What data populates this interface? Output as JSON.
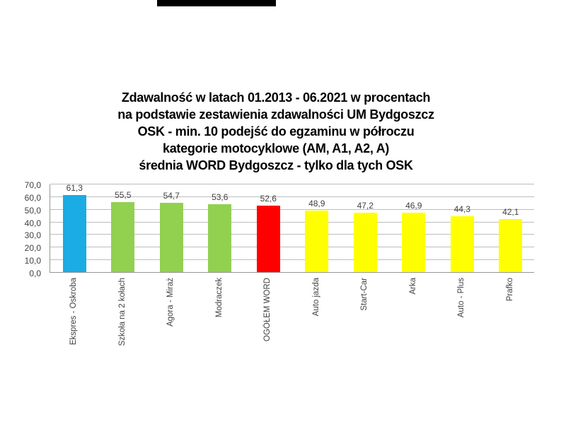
{
  "page": {
    "background": "#ffffff"
  },
  "redaction_bar": {
    "color": "#000000"
  },
  "title": {
    "lines": [
      "Zdawalność w latach 01.2013 - 06.2021 w procentach",
      "na podstawie zestawienia zdawalności UM Bydgoszcz",
      "OSK - min. 10 podejść do egzaminu w półroczu",
      "kategorie motocyklowe (AM, A1, A2, A)",
      "średnia WORD Bydgoszcz - tylko dla tych OSK"
    ]
  },
  "chart_data": {
    "type": "bar",
    "title": "Zdawalność w latach 01.2013 - 06.2021 w procentach na podstawie zestawienia zdawalności UM Bydgoszcz; OSK - min. 10 podejść do egzaminu w półroczu; kategorie motocyklowe (AM, A1, A2, A); średnia WORD Bydgoszcz - tylko dla tych OSK",
    "categories": [
      "Ekspres - Oskroba",
      "Szkoła na 2 kołach",
      "Agora - Miraż",
      "Modraczek",
      "OGÓŁEM WORD",
      "Auto jazda",
      "Start-Car",
      "Arka",
      "Auto - Plus",
      "Prafko"
    ],
    "values": [
      61.3,
      55.5,
      54.7,
      53.6,
      52.6,
      48.9,
      47.2,
      46.9,
      44.3,
      42.1
    ],
    "value_labels": [
      "61,3",
      "55,5",
      "54,7",
      "53,6",
      "52,6",
      "48,9",
      "47,2",
      "46,9",
      "44,3",
      "42,1"
    ],
    "bar_colors": [
      "#1aace3",
      "#92d050",
      "#92d050",
      "#92d050",
      "#ff0000",
      "#ffff00",
      "#ffff00",
      "#ffff00",
      "#ffff00",
      "#ffff00"
    ],
    "xlabel": "",
    "ylabel": "",
    "ylim": [
      0,
      70
    ],
    "ytick_step": 10,
    "ytick_labels": [
      "0,0",
      "10,0",
      "20,0",
      "30,0",
      "40,0",
      "50,0",
      "60,0",
      "70,0"
    ],
    "grid": true,
    "legend": false,
    "colors": {
      "grid": "#bdbdbd",
      "axis": "#969696",
      "tick_text": "#404040",
      "value_text": "#404040",
      "title_text": "#000000"
    }
  }
}
